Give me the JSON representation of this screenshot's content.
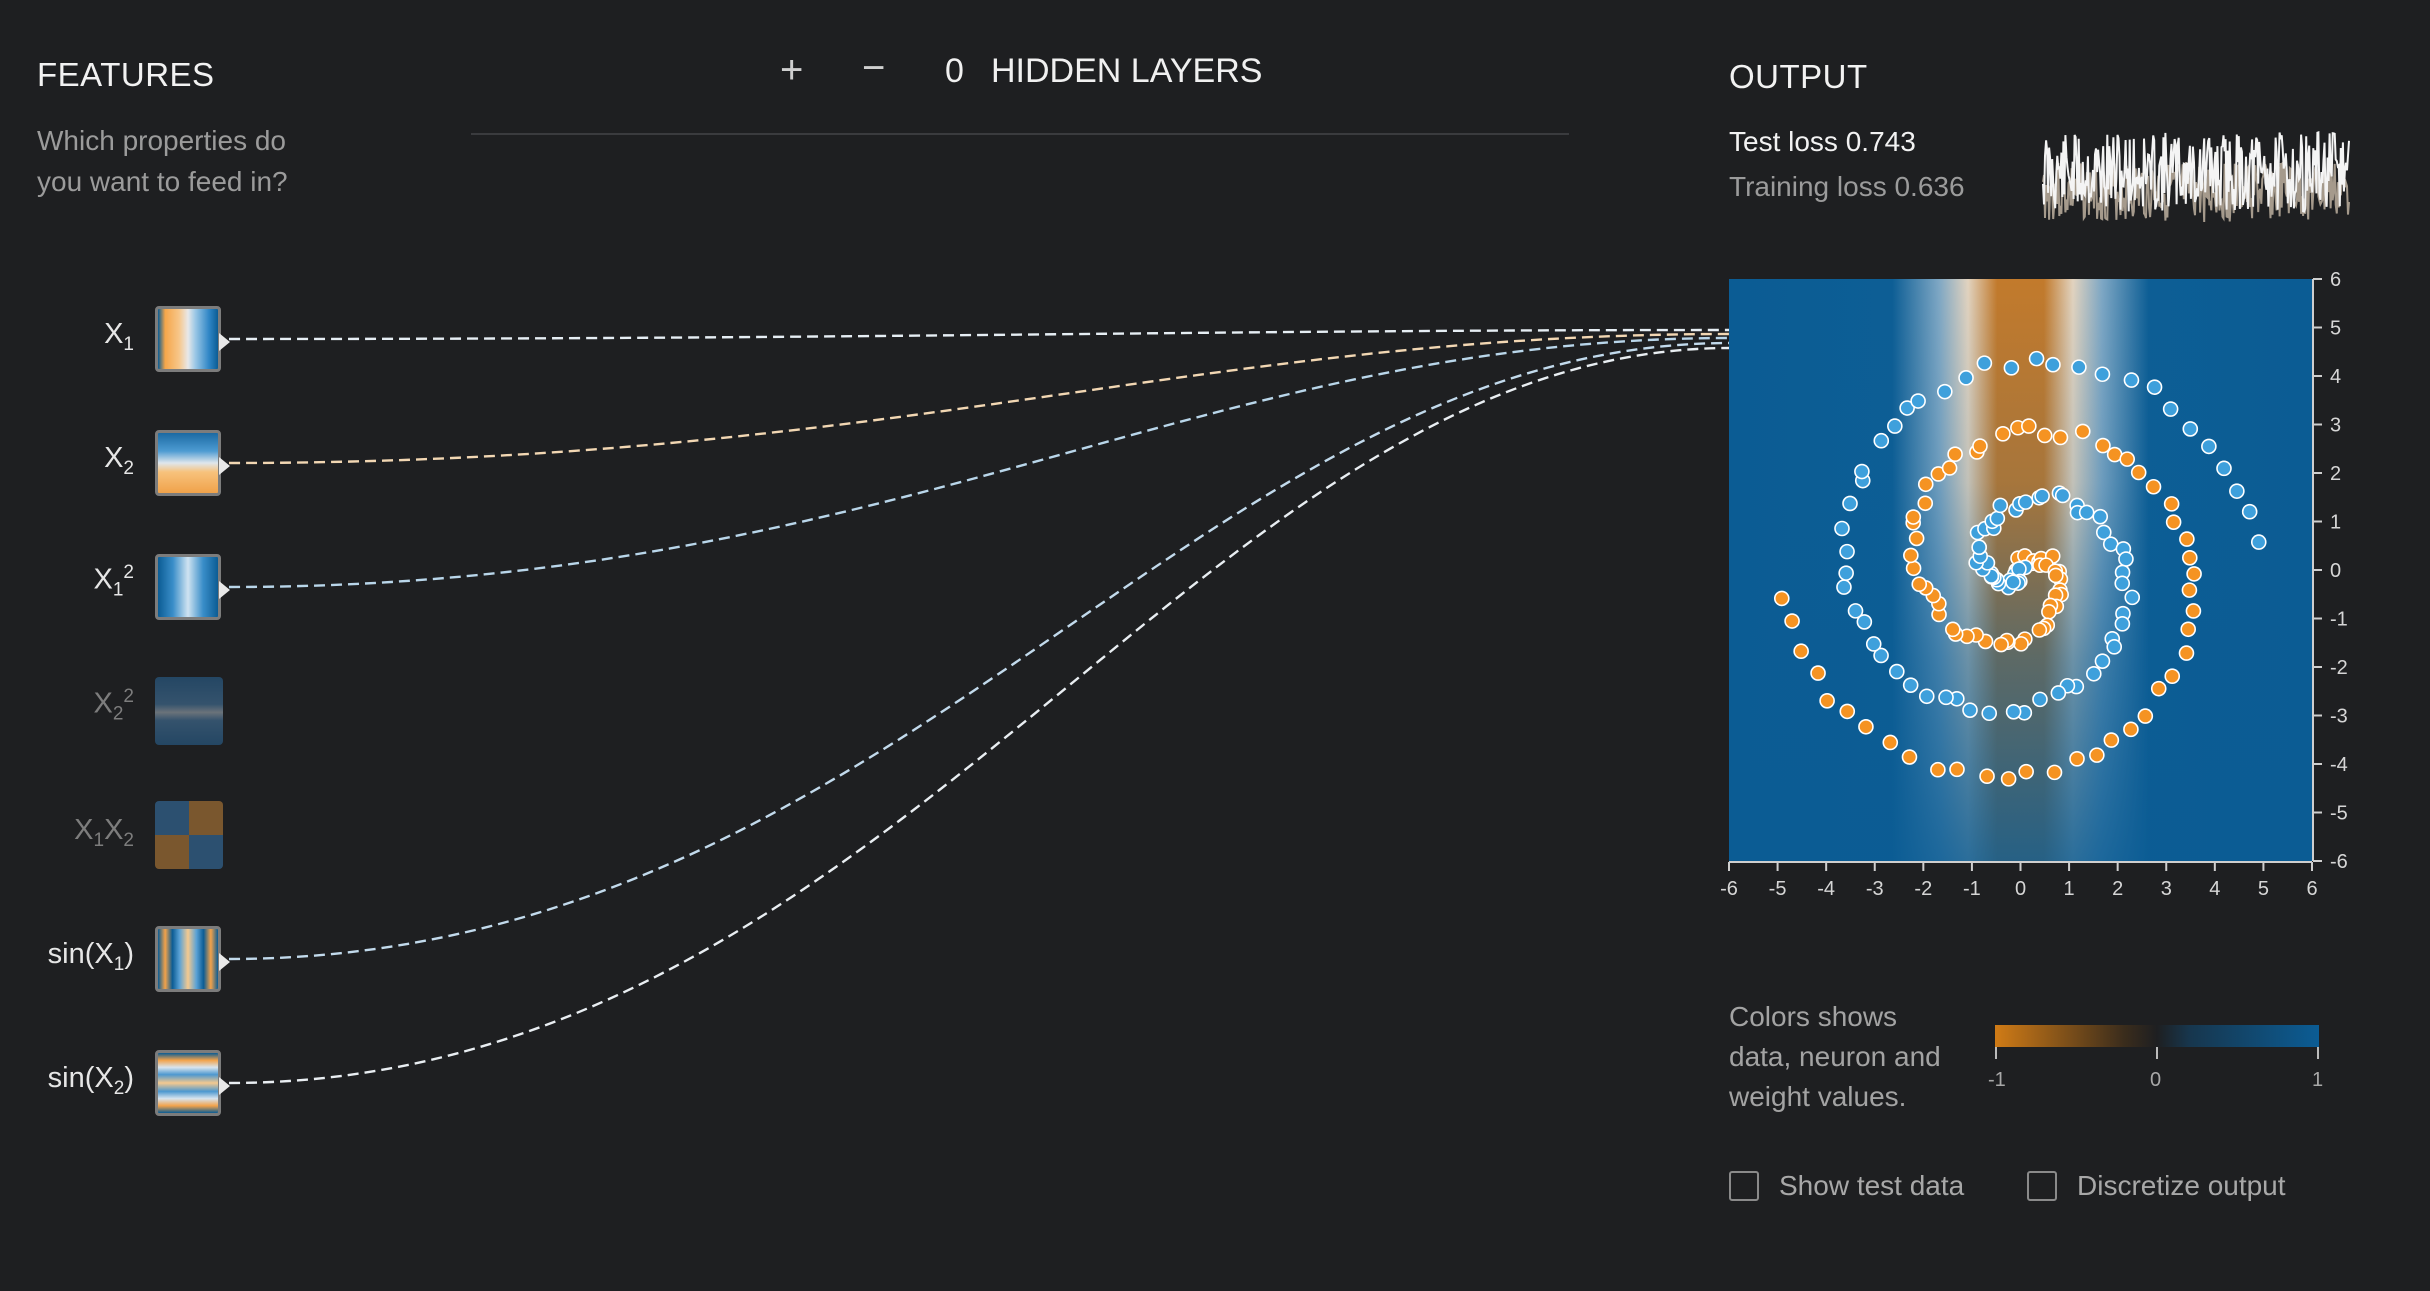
{
  "features_panel": {
    "title": "FEATURES",
    "subtitle_line1": "Which properties do",
    "subtitle_line2": "you want to feed in?"
  },
  "layers_control": {
    "plus": "+",
    "minus": "−",
    "count": "0",
    "label": "HIDDEN LAYERS"
  },
  "features": [
    {
      "base": "X",
      "sub": "1",
      "sup": "",
      "tail": "",
      "active": true
    },
    {
      "base": "X",
      "sub": "2",
      "sup": "",
      "tail": "",
      "active": true
    },
    {
      "base": "X",
      "sub": "1",
      "sup": "2",
      "tail": "",
      "active": true
    },
    {
      "base": "X",
      "sub": "2",
      "sup": "2",
      "tail": "",
      "active": false
    },
    {
      "base": "X",
      "sub": "1",
      "sup": "",
      "tail": "X",
      "tail_sub": "2",
      "active": false
    },
    {
      "base": "sin(X",
      "sub": "1",
      "sup": "",
      "tail": ")",
      "active": true
    },
    {
      "base": "sin(X",
      "sub": "2",
      "sup": "",
      "tail": ")",
      "active": true
    }
  ],
  "output_panel": {
    "title": "OUTPUT",
    "test_loss_label": "Test loss",
    "test_loss_value": "0.743",
    "training_loss_label": "Training loss",
    "training_loss_value": "0.636"
  },
  "chart_data": {
    "type": "scatter",
    "xlim": [
      -6,
      6
    ],
    "ylim": [
      -6,
      6
    ],
    "x_ticks": [
      "-6",
      "-5",
      "-4",
      "-3",
      "-2",
      "-1",
      "0",
      "1",
      "2",
      "3",
      "4",
      "5",
      "6"
    ],
    "y_ticks": [
      "6",
      "5",
      "4",
      "3",
      "2",
      "1",
      "0",
      "-1",
      "-2",
      "-3",
      "-4",
      "-5",
      "-6"
    ],
    "series": [
      {
        "color": "#f59322"
      },
      {
        "color": "#3ea0dc"
      }
    ]
  },
  "legend": {
    "line1": "Colors shows",
    "line2": "data, neuron and",
    "line3": "weight values.",
    "min": "-1",
    "mid": "0",
    "max": "1"
  },
  "options": {
    "show_test_data": "Show test data",
    "discretize_output": "Discretize output"
  },
  "colors": {
    "positive": "#0b5c94",
    "negative": "#d07b16",
    "background": "#1e1f21"
  }
}
